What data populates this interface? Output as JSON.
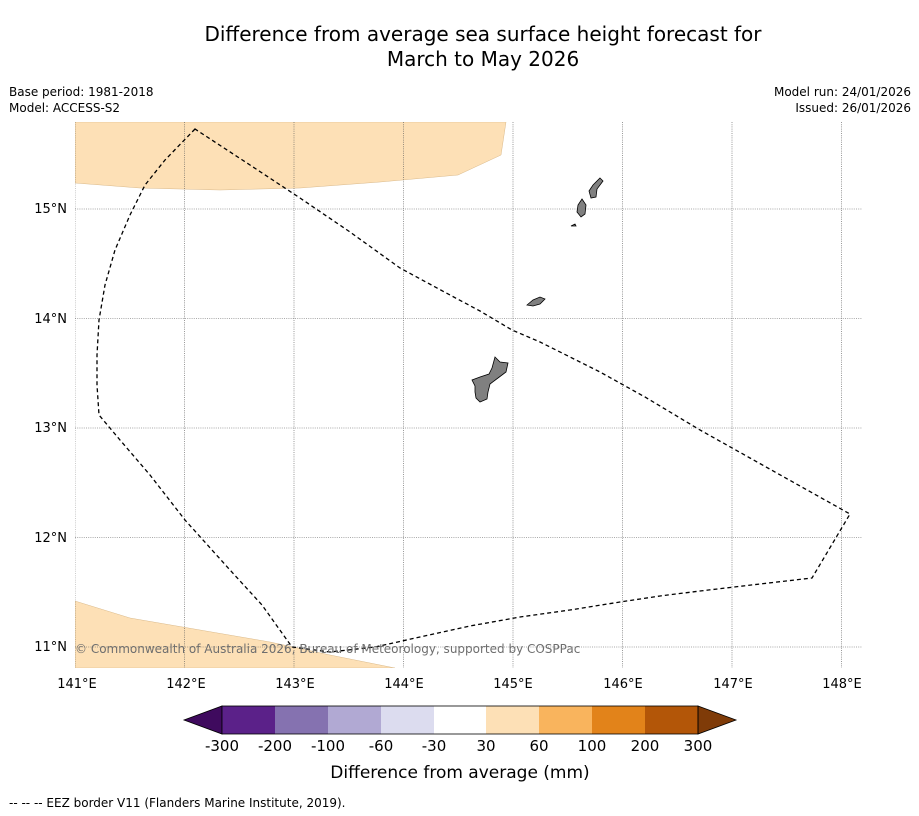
{
  "header": {
    "title_line1": "Difference from average sea surface height forecast for",
    "title_line2": "March to May 2026",
    "base_period": "Base period: 1981-2018",
    "model": "Model: ACCESS-S2",
    "model_run": "Model run: 24/01/2026",
    "issued": "Issued: 26/01/2026"
  },
  "map": {
    "lon_ticks": [
      "141°E",
      "142°E",
      "143°E",
      "144°E",
      "145°E",
      "146°E",
      "147°E",
      "148°E"
    ],
    "lat_ticks": [
      "15°N",
      "14°N",
      "13°N",
      "12°N",
      "11°N"
    ],
    "lon_range": [
      141,
      148.2
    ],
    "lat_range": [
      10.8,
      15.8
    ],
    "copyright": "© Commonwealth of Australia 2026, Bureau of Meteorology, supported by COSPPac",
    "colors": {
      "positive_30_60": "#fde0b6",
      "land": "#808080",
      "gridline": "#555555",
      "eez": "#000000"
    }
  },
  "colorbar": {
    "labels": [
      "-300",
      "-200",
      "-100",
      "-60",
      "-30",
      "30",
      "60",
      "100",
      "200",
      "300"
    ],
    "colors": [
      "#3f0a5e",
      "#5b2189",
      "#8572b0",
      "#b1a9d3",
      "#dcdcef",
      "#ffffff",
      "#fde0b6",
      "#f9b45d",
      "#e2831a",
      "#b35608",
      "#7f3b08"
    ],
    "label": "Difference from average (mm)"
  },
  "footnote": "--  --  -- EEZ border V11 (Flanders Marine Institute, 2019)."
}
